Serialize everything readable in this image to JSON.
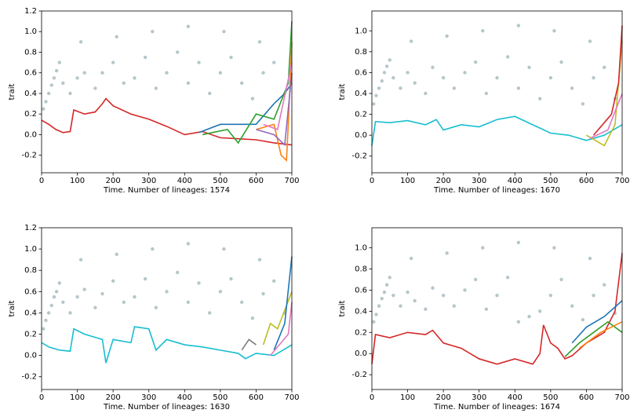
{
  "chart_data": [
    {
      "type": "line",
      "xlabel": "Time. Number of lineages: 1574",
      "ylabel": "trait",
      "xlim": [
        0,
        700
      ],
      "ylim": [
        -0.37,
        1.2
      ],
      "xticks": [
        0,
        100,
        200,
        300,
        400,
        500,
        600,
        700
      ],
      "yticks": [
        -0.2,
        {
          "value": 0,
          "label": "0.0"
        },
        0.2,
        0.4,
        0.6,
        0.8,
        {
          "value": 1,
          "label": "1.0"
        },
        1.2
      ],
      "cloud": {
        "color": "#2f5d6b",
        "x": [
          5,
          12,
          20,
          28,
          35,
          42,
          50,
          60,
          80,
          100,
          120,
          150,
          170,
          200,
          230,
          260,
          290,
          320,
          350,
          380,
          410,
          440,
          470,
          500,
          530,
          560,
          590,
          620,
          650,
          680,
          110,
          210,
          310,
          410,
          510,
          610
        ],
        "values": [
          0.25,
          0.32,
          0.4,
          0.48,
          0.55,
          0.62,
          0.7,
          0.5,
          0.4,
          0.55,
          0.6,
          0.45,
          0.6,
          0.7,
          0.5,
          0.55,
          0.75,
          0.45,
          0.6,
          0.8,
          0.5,
          0.7,
          0.4,
          0.6,
          0.75,
          0.5,
          0.35,
          0.6,
          0.7,
          0.4,
          0.9,
          0.95,
          1.0,
          1.05,
          1.0,
          0.9
        ]
      },
      "series": [
        {
          "color": "#d62728",
          "x": [
            0,
            20,
            40,
            60,
            80,
            90,
            120,
            150,
            170,
            180,
            200,
            250,
            300,
            350,
            400,
            450,
            500,
            550,
            600,
            650,
            700
          ],
          "values": [
            0.14,
            0.1,
            0.05,
            0.02,
            0.03,
            0.24,
            0.2,
            0.22,
            0.3,
            0.35,
            0.28,
            0.2,
            0.15,
            0.08,
            0.0,
            0.03,
            -0.03,
            -0.04,
            -0.05,
            -0.08,
            -0.1
          ]
        },
        {
          "color": "#1f77b4",
          "x": [
            440,
            500,
            600,
            650,
            680,
            700
          ],
          "values": [
            0.02,
            0.1,
            0.1,
            0.3,
            0.4,
            0.5
          ]
        },
        {
          "color": "#2ca02c",
          "x": [
            450,
            520,
            550,
            600,
            650,
            690,
            700
          ],
          "values": [
            0.0,
            0.05,
            -0.08,
            0.2,
            0.15,
            0.5,
            1.1
          ]
        },
        {
          "color": "#ff7f0e",
          "x": [
            600,
            650,
            670,
            685,
            690,
            700
          ],
          "values": [
            0.05,
            0.1,
            -0.2,
            -0.25,
            0.1,
            0.9
          ]
        },
        {
          "color": "#9467bd",
          "x": [
            600,
            650,
            680,
            700
          ],
          "values": [
            0.05,
            0.0,
            -0.1,
            0.6
          ]
        },
        {
          "color": "#e377c2",
          "x": [
            620,
            660,
            700
          ],
          "values": [
            0.1,
            0.05,
            0.7
          ]
        }
      ]
    },
    {
      "type": "line",
      "xlabel": "Time. Number of lineages: 1670",
      "ylabel": "trait",
      "xlim": [
        0,
        700
      ],
      "ylim": [
        -0.36,
        1.19
      ],
      "xticks": [
        0,
        100,
        200,
        300,
        400,
        500,
        600,
        700
      ],
      "yticks": [
        -0.2,
        {
          "value": 0,
          "label": "0.0"
        },
        0.2,
        0.4,
        0.6,
        0.8,
        {
          "value": 1,
          "label": "1.0"
        }
      ],
      "cloud": {
        "color": "#2f5d6b",
        "x": [
          5,
          12,
          20,
          28,
          35,
          42,
          50,
          60,
          80,
          100,
          120,
          150,
          170,
          200,
          230,
          260,
          290,
          320,
          350,
          380,
          410,
          440,
          470,
          500,
          530,
          560,
          590,
          620,
          650,
          680,
          110,
          210,
          310,
          410,
          510,
          610
        ],
        "values": [
          0.3,
          0.38,
          0.45,
          0.52,
          0.6,
          0.66,
          0.72,
          0.55,
          0.45,
          0.6,
          0.5,
          0.4,
          0.65,
          0.55,
          0.45,
          0.6,
          0.7,
          0.4,
          0.55,
          0.75,
          0.45,
          0.65,
          0.35,
          0.55,
          0.7,
          0.45,
          0.3,
          0.55,
          0.65,
          0.35,
          0.9,
          0.95,
          1.0,
          1.05,
          1.0,
          0.9
        ]
      },
      "series": [
        {
          "color": "#17becf",
          "x": [
            0,
            10,
            50,
            100,
            150,
            180,
            200,
            250,
            300,
            350,
            400,
            450,
            500,
            550,
            600,
            650,
            700
          ],
          "values": [
            -0.1,
            0.13,
            0.12,
            0.14,
            0.1,
            0.15,
            0.05,
            0.1,
            0.08,
            0.15,
            0.18,
            0.1,
            0.02,
            0.0,
            -0.05,
            0.0,
            0.1
          ]
        },
        {
          "color": "#bcbd22",
          "x": [
            600,
            650,
            680,
            700
          ],
          "values": [
            0.0,
            -0.1,
            0.1,
            0.9
          ]
        },
        {
          "color": "#d62728",
          "x": [
            620,
            670,
            690,
            700
          ],
          "values": [
            0.0,
            0.2,
            0.5,
            1.05
          ]
        },
        {
          "color": "#e377c2",
          "x": [
            610,
            660,
            700
          ],
          "values": [
            -0.03,
            0.05,
            0.4
          ]
        }
      ]
    },
    {
      "type": "line",
      "xlabel": "Time. Number of lineages: 1630",
      "ylabel": "trait",
      "xlim": [
        0,
        700
      ],
      "ylim": [
        -0.32,
        1.2
      ],
      "xticks": [
        0,
        100,
        200,
        300,
        400,
        500,
        600,
        700
      ],
      "yticks": [
        -0.2,
        {
          "value": 0,
          "label": "0.0"
        },
        0.2,
        0.4,
        0.6,
        0.8,
        {
          "value": 1,
          "label": "1.0"
        },
        1.2
      ],
      "cloud": {
        "color": "#2f5d6b",
        "x": [
          5,
          12,
          20,
          28,
          35,
          42,
          50,
          60,
          80,
          100,
          120,
          150,
          170,
          200,
          230,
          260,
          290,
          320,
          350,
          380,
          410,
          440,
          470,
          500,
          530,
          560,
          590,
          620,
          650,
          680,
          110,
          210,
          310,
          410,
          510,
          610
        ],
        "values": [
          0.25,
          0.33,
          0.4,
          0.47,
          0.55,
          0.6,
          0.68,
          0.5,
          0.4,
          0.55,
          0.62,
          0.45,
          0.58,
          0.7,
          0.5,
          0.55,
          0.72,
          0.45,
          0.6,
          0.78,
          0.5,
          0.68,
          0.4,
          0.6,
          0.72,
          0.5,
          0.35,
          0.58,
          0.7,
          0.4,
          0.9,
          0.95,
          1.0,
          1.05,
          1.0,
          0.9
        ]
      },
      "series": [
        {
          "color": "#17becf",
          "x": [
            0,
            20,
            50,
            80,
            90,
            120,
            170,
            180,
            200,
            250,
            260,
            300,
            320,
            350,
            400,
            450,
            500,
            550,
            570,
            600,
            650,
            700
          ],
          "values": [
            0.12,
            0.08,
            0.05,
            0.04,
            0.25,
            0.2,
            0.15,
            -0.07,
            0.15,
            0.12,
            0.27,
            0.25,
            0.05,
            0.15,
            0.1,
            0.08,
            0.05,
            0.02,
            -0.03,
            0.02,
            0.0,
            0.1
          ]
        },
        {
          "color": "#7f7f7f",
          "x": [
            560,
            580,
            600
          ],
          "values": [
            0.05,
            0.15,
            0.1
          ]
        },
        {
          "color": "#bcbd22",
          "x": [
            620,
            640,
            660,
            700
          ],
          "values": [
            0.1,
            0.3,
            0.25,
            0.6
          ]
        },
        {
          "color": "#1f77b4",
          "x": [
            650,
            680,
            700
          ],
          "values": [
            0.05,
            0.3,
            0.93
          ]
        },
        {
          "color": "#e377c2",
          "x": [
            640,
            690,
            700
          ],
          "values": [
            0.0,
            0.2,
            0.5
          ]
        }
      ]
    },
    {
      "type": "line",
      "xlabel": "Time. Number of lineages: 1674",
      "ylabel": "trait",
      "xlim": [
        0,
        700
      ],
      "ylim": [
        -0.34,
        1.19
      ],
      "xticks": [
        0,
        100,
        200,
        300,
        400,
        500,
        600,
        700
      ],
      "yticks": [
        -0.2,
        {
          "value": 0,
          "label": "0.0"
        },
        0.2,
        0.4,
        0.6,
        0.8,
        {
          "value": 1,
          "label": "1.0"
        }
      ],
      "cloud": {
        "color": "#2f5d6b",
        "x": [
          5,
          12,
          20,
          28,
          35,
          42,
          50,
          60,
          80,
          100,
          120,
          150,
          170,
          200,
          230,
          260,
          290,
          320,
          350,
          380,
          410,
          440,
          470,
          500,
          530,
          560,
          590,
          620,
          650,
          680,
          110,
          210,
          310,
          410,
          510,
          610
        ],
        "values": [
          0.3,
          0.37,
          0.45,
          0.52,
          0.58,
          0.65,
          0.72,
          0.55,
          0.45,
          0.58,
          0.5,
          0.42,
          0.62,
          0.55,
          0.45,
          0.6,
          0.7,
          0.42,
          0.55,
          0.72,
          0.3,
          0.35,
          0.4,
          0.55,
          0.7,
          0.45,
          0.32,
          0.55,
          0.65,
          0.38,
          0.9,
          0.95,
          1.0,
          1.05,
          1.0,
          0.9
        ]
      },
      "series": [
        {
          "color": "#d62728",
          "x": [
            0,
            10,
            50,
            100,
            150,
            170,
            200,
            250,
            300,
            350,
            400,
            450,
            470,
            480,
            500,
            520,
            540,
            560,
            600,
            650,
            680,
            700
          ],
          "values": [
            -0.1,
            0.18,
            0.15,
            0.2,
            0.18,
            0.22,
            0.1,
            0.05,
            -0.05,
            -0.1,
            -0.05,
            -0.1,
            0.0,
            0.27,
            0.1,
            0.05,
            -0.05,
            -0.02,
            0.1,
            0.2,
            0.4,
            0.95
          ]
        },
        {
          "color": "#2ca02c",
          "x": [
            540,
            580,
            620,
            660,
            700
          ],
          "values": [
            -0.03,
            0.1,
            0.2,
            0.3,
            0.2
          ]
        },
        {
          "color": "#1f77b4",
          "x": [
            560,
            600,
            650,
            700
          ],
          "values": [
            0.1,
            0.25,
            0.35,
            0.5
          ]
        },
        {
          "color": "#ff7f0e",
          "x": [
            580,
            640,
            700
          ],
          "values": [
            0.05,
            0.2,
            0.3
          ]
        }
      ]
    }
  ]
}
